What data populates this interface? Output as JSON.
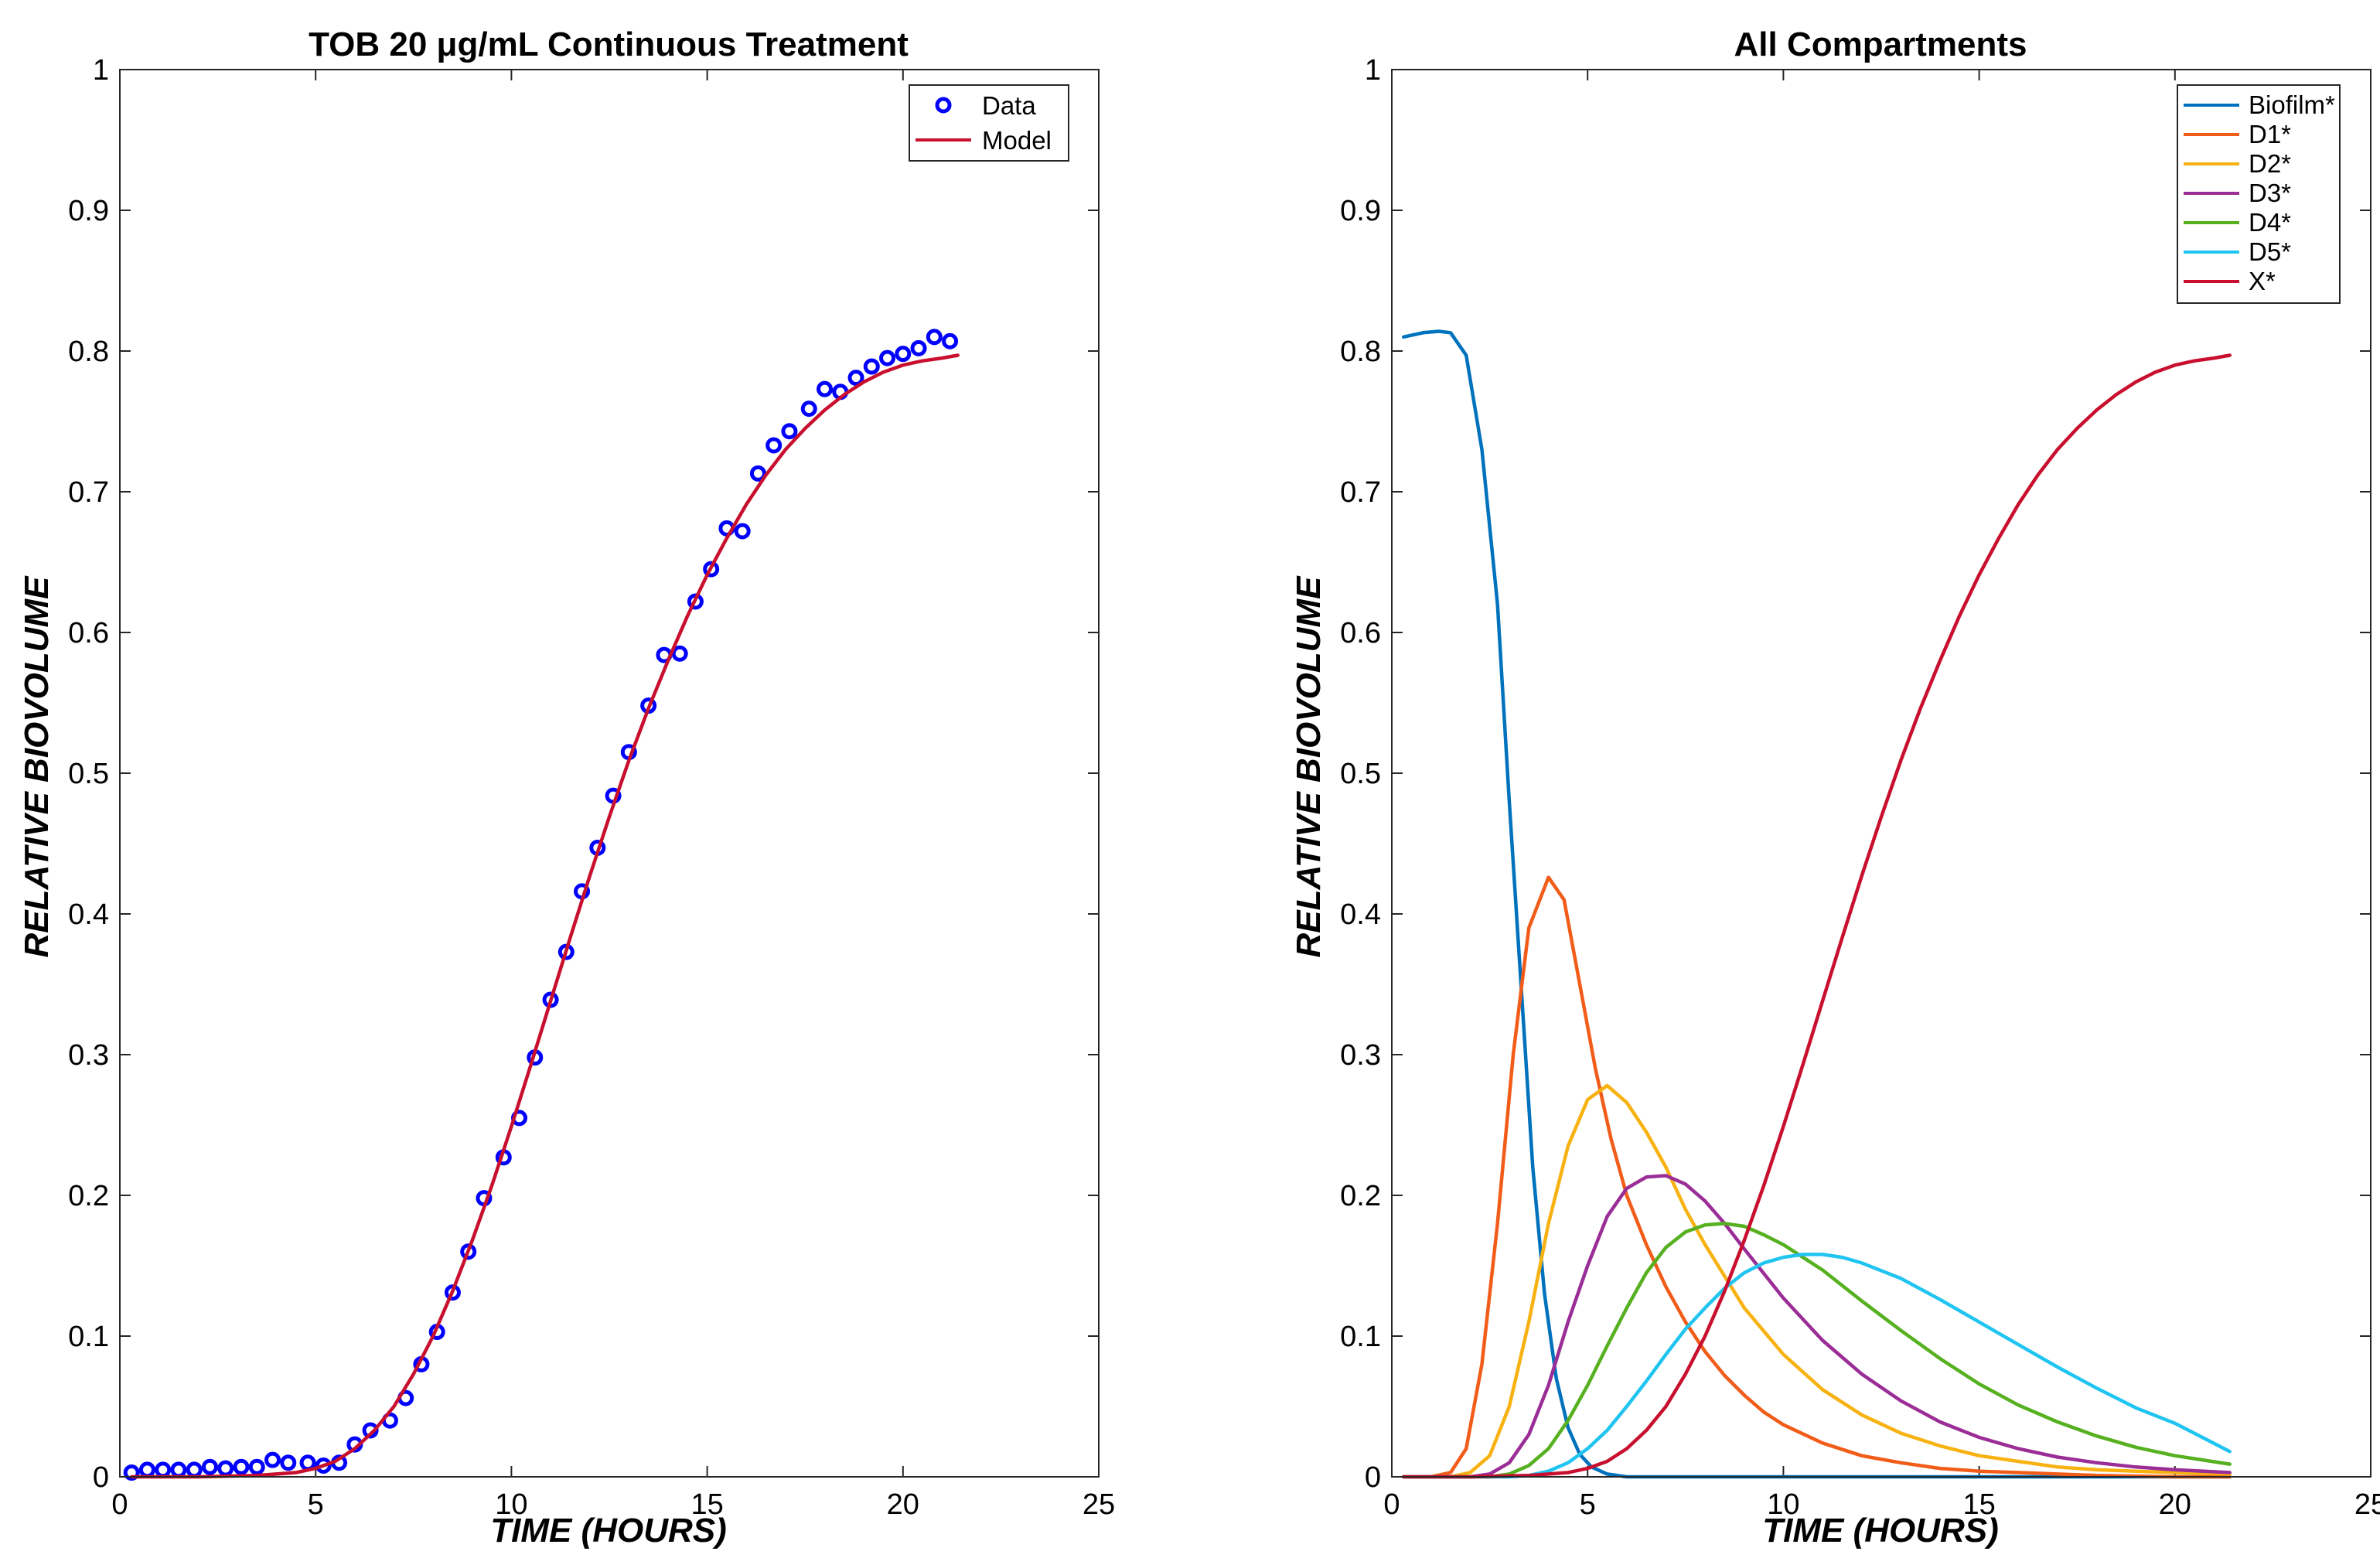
{
  "chart_data": [
    {
      "type": "line",
      "title": "TOB 20 μg/mL Continuous Treatment",
      "xlabel": "TIME (HOURS)",
      "ylabel": "RELATIVE BIOVOLUME",
      "xlim": [
        0,
        25
      ],
      "ylim": [
        0,
        1
      ],
      "xticks": [
        "0",
        "5",
        "10",
        "15",
        "20",
        "25"
      ],
      "yticks": [
        "0",
        "0.1",
        "0.2",
        "0.3",
        "0.4",
        "0.5",
        "0.6",
        "0.7",
        "0.8",
        "0.9",
        "1"
      ],
      "legend_position": "top-right",
      "series": [
        {
          "name": "Data",
          "style": "markers",
          "color": "#0000ff",
          "x": [
            0.3,
            0.7,
            1.1,
            1.5,
            1.9,
            2.3,
            2.7,
            3.1,
            3.5,
            3.9,
            4.3,
            4.8,
            5.2,
            5.6,
            6.0,
            6.4,
            6.9,
            7.3,
            7.7,
            8.1,
            8.5,
            8.9,
            9.3,
            9.8,
            10.2,
            10.6,
            11.0,
            11.4,
            11.8,
            12.2,
            12.6,
            13.0,
            13.5,
            13.9,
            14.3,
            14.7,
            15.1,
            15.5,
            15.9,
            16.3,
            16.7,
            17.1,
            17.6,
            18.0,
            18.4,
            18.8,
            19.2,
            19.6,
            20.0,
            20.4,
            20.8,
            21.2
          ],
          "y": [
            0.003,
            0.005,
            0.005,
            0.005,
            0.005,
            0.007,
            0.006,
            0.007,
            0.007,
            0.012,
            0.01,
            0.01,
            0.008,
            0.01,
            0.023,
            0.033,
            0.04,
            0.056,
            0.08,
            0.103,
            0.131,
            0.16,
            0.198,
            0.227,
            0.255,
            0.298,
            0.339,
            0.373,
            0.416,
            0.447,
            0.484,
            0.515,
            0.548,
            0.584,
            0.585,
            0.622,
            0.645,
            0.674,
            0.672,
            0.713,
            0.733,
            0.743,
            0.759,
            0.773,
            0.771,
            0.781,
            0.789,
            0.795,
            0.798,
            0.802,
            0.81,
            0.807
          ]
        },
        {
          "name": "Model",
          "style": "line",
          "color": "#c8102e",
          "x": [
            0.3,
            2.0,
            3.5,
            4.5,
            5.0,
            5.5,
            6.0,
            6.5,
            7.0,
            7.5,
            8.0,
            8.5,
            9.0,
            9.5,
            10.0,
            10.5,
            11.0,
            11.5,
            12.0,
            12.5,
            13.0,
            13.5,
            14.0,
            14.5,
            15.0,
            15.5,
            16.0,
            16.5,
            17.0,
            17.5,
            18.0,
            18.5,
            19.0,
            19.5,
            20.0,
            20.5,
            21.0,
            21.4
          ],
          "y": [
            0.0,
            0.0,
            0.001,
            0.003,
            0.006,
            0.011,
            0.02,
            0.033,
            0.05,
            0.073,
            0.1,
            0.132,
            0.168,
            0.207,
            0.249,
            0.293,
            0.338,
            0.383,
            0.427,
            0.469,
            0.509,
            0.546,
            0.58,
            0.612,
            0.641,
            0.667,
            0.691,
            0.712,
            0.73,
            0.745,
            0.758,
            0.769,
            0.778,
            0.785,
            0.79,
            0.793,
            0.795,
            0.797
          ]
        }
      ]
    },
    {
      "type": "line",
      "title": "All Compartments",
      "xlabel": "TIME (HOURS)",
      "ylabel": "RELATIVE BIOVOLUME",
      "xlim": [
        0,
        25
      ],
      "ylim": [
        0,
        1
      ],
      "xticks": [
        "0",
        "5",
        "10",
        "15",
        "20",
        "25"
      ],
      "yticks": [
        "0",
        "0.1",
        "0.2",
        "0.3",
        "0.4",
        "0.5",
        "0.6",
        "0.7",
        "0.8",
        "0.9",
        "1"
      ],
      "legend_position": "top-right",
      "series": [
        {
          "name": "Biofilm*",
          "color": "#0072bd",
          "x": [
            0.3,
            0.8,
            1.2,
            1.5,
            1.9,
            2.3,
            2.7,
            3.0,
            3.3,
            3.6,
            3.9,
            4.2,
            4.5,
            4.8,
            5.1,
            5.5,
            6.0,
            7.0,
            10.0,
            15.0,
            21.4
          ],
          "y": [
            0.81,
            0.813,
            0.814,
            0.813,
            0.797,
            0.73,
            0.62,
            0.48,
            0.35,
            0.22,
            0.13,
            0.07,
            0.035,
            0.016,
            0.007,
            0.002,
            0.0,
            0.0,
            0.0,
            0.0,
            0.0
          ]
        },
        {
          "name": "D1*",
          "color": "#f25c19",
          "x": [
            0.3,
            1.0,
            1.5,
            1.9,
            2.3,
            2.7,
            3.1,
            3.5,
            4.0,
            4.4,
            4.8,
            5.2,
            5.6,
            6.0,
            6.5,
            7.0,
            7.5,
            8.0,
            8.5,
            9.0,
            9.5,
            10.0,
            11.0,
            12.0,
            13.0,
            14.0,
            15.0,
            16.0,
            18.0,
            20.0,
            21.4
          ],
          "y": [
            0.0,
            0.0,
            0.003,
            0.02,
            0.08,
            0.18,
            0.3,
            0.39,
            0.426,
            0.41,
            0.35,
            0.29,
            0.24,
            0.2,
            0.165,
            0.135,
            0.11,
            0.089,
            0.072,
            0.058,
            0.046,
            0.037,
            0.024,
            0.015,
            0.01,
            0.006,
            0.004,
            0.003,
            0.001,
            0.0,
            0.0
          ]
        },
        {
          "name": "D2*",
          "color": "#f7b212",
          "x": [
            0.3,
            1.5,
            2.0,
            2.5,
            3.0,
            3.5,
            4.0,
            4.5,
            5.0,
            5.5,
            6.0,
            6.5,
            7.0,
            7.5,
            8.0,
            9.0,
            10.0,
            11.0,
            12.0,
            13.0,
            14.0,
            15.0,
            16.0,
            17.0,
            18.0,
            19.0,
            20.0,
            21.4
          ],
          "y": [
            0.0,
            0.0,
            0.003,
            0.015,
            0.05,
            0.11,
            0.18,
            0.235,
            0.268,
            0.278,
            0.266,
            0.245,
            0.22,
            0.19,
            0.165,
            0.12,
            0.087,
            0.062,
            0.044,
            0.031,
            0.022,
            0.015,
            0.011,
            0.007,
            0.005,
            0.004,
            0.003,
            0.002
          ]
        },
        {
          "name": "D3*",
          "color": "#9a2d96",
          "x": [
            0.3,
            2.0,
            2.5,
            3.0,
            3.5,
            4.0,
            4.5,
            5.0,
            5.5,
            6.0,
            6.5,
            7.0,
            7.5,
            8.0,
            8.5,
            9.0,
            10.0,
            11.0,
            12.0,
            13.0,
            14.0,
            15.0,
            16.0,
            17.0,
            18.0,
            19.0,
            20.0,
            21.4
          ],
          "y": [
            0.0,
            0.0,
            0.002,
            0.01,
            0.03,
            0.065,
            0.11,
            0.15,
            0.185,
            0.205,
            0.213,
            0.214,
            0.208,
            0.196,
            0.18,
            0.162,
            0.127,
            0.097,
            0.073,
            0.054,
            0.039,
            0.028,
            0.02,
            0.014,
            0.01,
            0.007,
            0.005,
            0.003
          ]
        },
        {
          "name": "D4*",
          "color": "#56b020",
          "x": [
            0.3,
            2.5,
            3.0,
            3.5,
            4.0,
            4.5,
            5.0,
            5.5,
            6.0,
            6.5,
            7.0,
            7.5,
            8.0,
            8.5,
            9.0,
            9.5,
            10.0,
            11.0,
            12.0,
            13.0,
            14.0,
            15.0,
            16.0,
            17.0,
            18.0,
            19.0,
            20.0,
            21.4
          ],
          "y": [
            0.0,
            0.0,
            0.002,
            0.008,
            0.02,
            0.04,
            0.065,
            0.093,
            0.12,
            0.145,
            0.163,
            0.174,
            0.179,
            0.18,
            0.178,
            0.172,
            0.165,
            0.147,
            0.125,
            0.104,
            0.084,
            0.066,
            0.051,
            0.039,
            0.029,
            0.021,
            0.015,
            0.009
          ]
        },
        {
          "name": "D5*",
          "color": "#20c4f0",
          "x": [
            0.3,
            3.0,
            3.5,
            4.0,
            4.5,
            5.0,
            5.5,
            6.0,
            6.5,
            7.0,
            7.5,
            8.0,
            8.5,
            9.0,
            9.5,
            10.0,
            10.5,
            11.0,
            11.5,
            12.0,
            13.0,
            14.0,
            15.0,
            16.0,
            17.0,
            18.0,
            19.0,
            20.0,
            21.4
          ],
          "y": [
            0.0,
            0.0,
            0.001,
            0.004,
            0.01,
            0.02,
            0.033,
            0.05,
            0.068,
            0.087,
            0.105,
            0.12,
            0.134,
            0.145,
            0.152,
            0.156,
            0.158,
            0.158,
            0.156,
            0.152,
            0.141,
            0.126,
            0.11,
            0.094,
            0.078,
            0.063,
            0.049,
            0.038,
            0.018
          ]
        },
        {
          "name": "X*",
          "color": "#c8102e",
          "x": [
            0.3,
            2.0,
            3.5,
            4.5,
            5.0,
            5.5,
            6.0,
            6.5,
            7.0,
            7.5,
            8.0,
            8.5,
            9.0,
            9.5,
            10.0,
            10.5,
            11.0,
            11.5,
            12.0,
            12.5,
            13.0,
            13.5,
            14.0,
            14.5,
            15.0,
            15.5,
            16.0,
            16.5,
            17.0,
            17.5,
            18.0,
            18.5,
            19.0,
            19.5,
            20.0,
            20.5,
            21.0,
            21.4
          ],
          "y": [
            0.0,
            0.0,
            0.001,
            0.003,
            0.006,
            0.011,
            0.02,
            0.033,
            0.05,
            0.073,
            0.1,
            0.132,
            0.168,
            0.207,
            0.249,
            0.293,
            0.338,
            0.383,
            0.427,
            0.469,
            0.509,
            0.546,
            0.58,
            0.612,
            0.641,
            0.667,
            0.691,
            0.712,
            0.73,
            0.745,
            0.758,
            0.769,
            0.778,
            0.785,
            0.79,
            0.793,
            0.795,
            0.797
          ]
        }
      ]
    }
  ]
}
